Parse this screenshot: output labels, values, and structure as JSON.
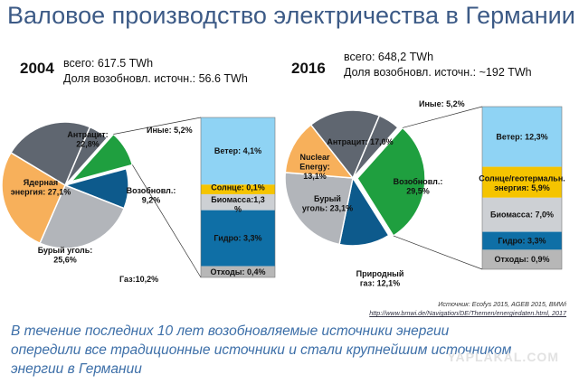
{
  "title": "Валовое производство электричества в Германии",
  "chart_data": [
    {
      "type": "pie",
      "year": "2004",
      "total": "всего: 617.5 TWh",
      "renewable_share": "Доля возобновл. источн.: 56.6 TWh",
      "slices": [
        {
          "name": "Иные: 5,2%",
          "value": 5.2,
          "color": "#5f6670"
        },
        {
          "name": "Возобновл.: 9,2%",
          "value": 9.2,
          "color": "#1f9f3f"
        },
        {
          "name": "Газ:10,2%",
          "value": 10.2,
          "color": "#0d5a8c"
        },
        {
          "name": "Бурый уголь: 25,6%",
          "value": 25.6,
          "color": "#b2b5ba"
        },
        {
          "name": "Ядерная энергия: 27,1%",
          "value": 27.1,
          "color": "#f7b05b"
        },
        {
          "name": "Антрацит: 22,8%",
          "value": 22.8,
          "color": "#5f6670"
        }
      ],
      "breakdown": [
        {
          "name": "Ветер: 4,1%",
          "value": 4.1,
          "color": "#8fd3f4"
        },
        {
          "name": "Солнце: 0,1%",
          "value": 0.1,
          "color": "#f5c400"
        },
        {
          "name": "Биомасса:1,3 %",
          "value": 1.3,
          "color": "#cdd0d4"
        },
        {
          "name": "Гидро: 3,3%",
          "value": 3.3,
          "color": "#0f6fa6"
        },
        {
          "name": "Отходы: 0,4%",
          "value": 0.4,
          "color": "#b7b7b7"
        }
      ]
    },
    {
      "type": "pie",
      "year": "2016",
      "total": "всего: 648,2 TWh",
      "renewable_share": "Доля возобновл. источн.: ~192 TWh",
      "slices": [
        {
          "name": "Иные: 5,2%",
          "value": 5.2,
          "color": "#5f6670"
        },
        {
          "name": "Возобновл.: 29,5%",
          "value": 29.5,
          "color": "#1f9f3f"
        },
        {
          "name": "Природный газ: 12,1%",
          "value": 12.1,
          "color": "#0d5a8c"
        },
        {
          "name": "Бурый уголь: 23,1%",
          "value": 23.1,
          "color": "#b2b5ba"
        },
        {
          "name": "Nuclear Energy: 13,1%",
          "value": 13.1,
          "color": "#f7b05b"
        },
        {
          "name": "Антрацит: 17,0%",
          "value": 17.0,
          "color": "#5f6670"
        }
      ],
      "breakdown": [
        {
          "name": "Ветер: 12,3%",
          "value": 12.3,
          "color": "#8fd3f4"
        },
        {
          "name": "Солнце/геотермальн. энергия: 5,9%",
          "value": 5.9,
          "color": "#f5c400"
        },
        {
          "name": "Биомасса: 7,0%",
          "value": 7.0,
          "color": "#cdd0d4"
        },
        {
          "name": "Гидро: 3,3%",
          "value": 3.3,
          "color": "#0f6fa6"
        },
        {
          "name": "Отходы: 0,9%",
          "value": 0.9,
          "color": "#b7b7b7"
        }
      ]
    }
  ],
  "source": "Источник: Ecofys 2015, AGEB 2015, BMWi",
  "source_link": "http://www.bmwi.de/Navigation/DE/Themen/energiedaten.html, 2017",
  "summary": "В течение последних 10 лет возобновляемые источники энергии опередили все традиционные источники и стали крупнейшим источником энергии в Германии",
  "watermark": "YAPLAKAL.COM"
}
